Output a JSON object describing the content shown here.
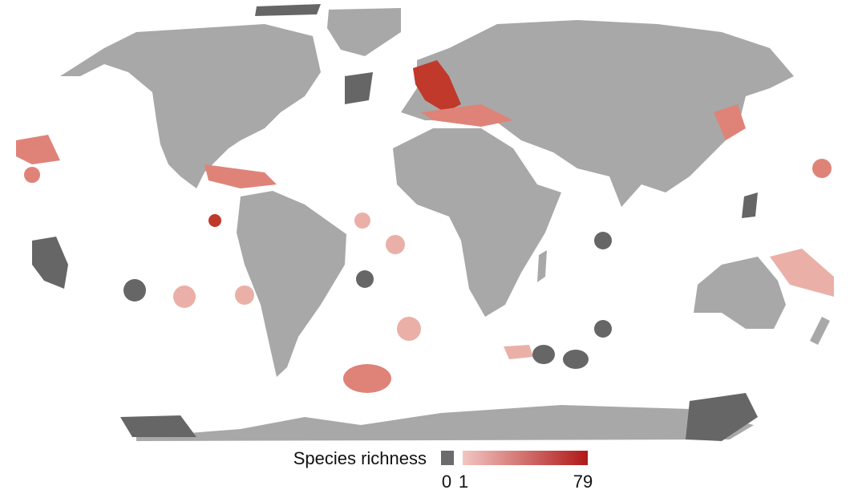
{
  "legend": {
    "title": "Species richness",
    "ticks": [
      0,
      1,
      79
    ],
    "no_data_color": "#6b6b6b",
    "gradient": [
      "#f2c6c2",
      "#b01818"
    ]
  }
}
